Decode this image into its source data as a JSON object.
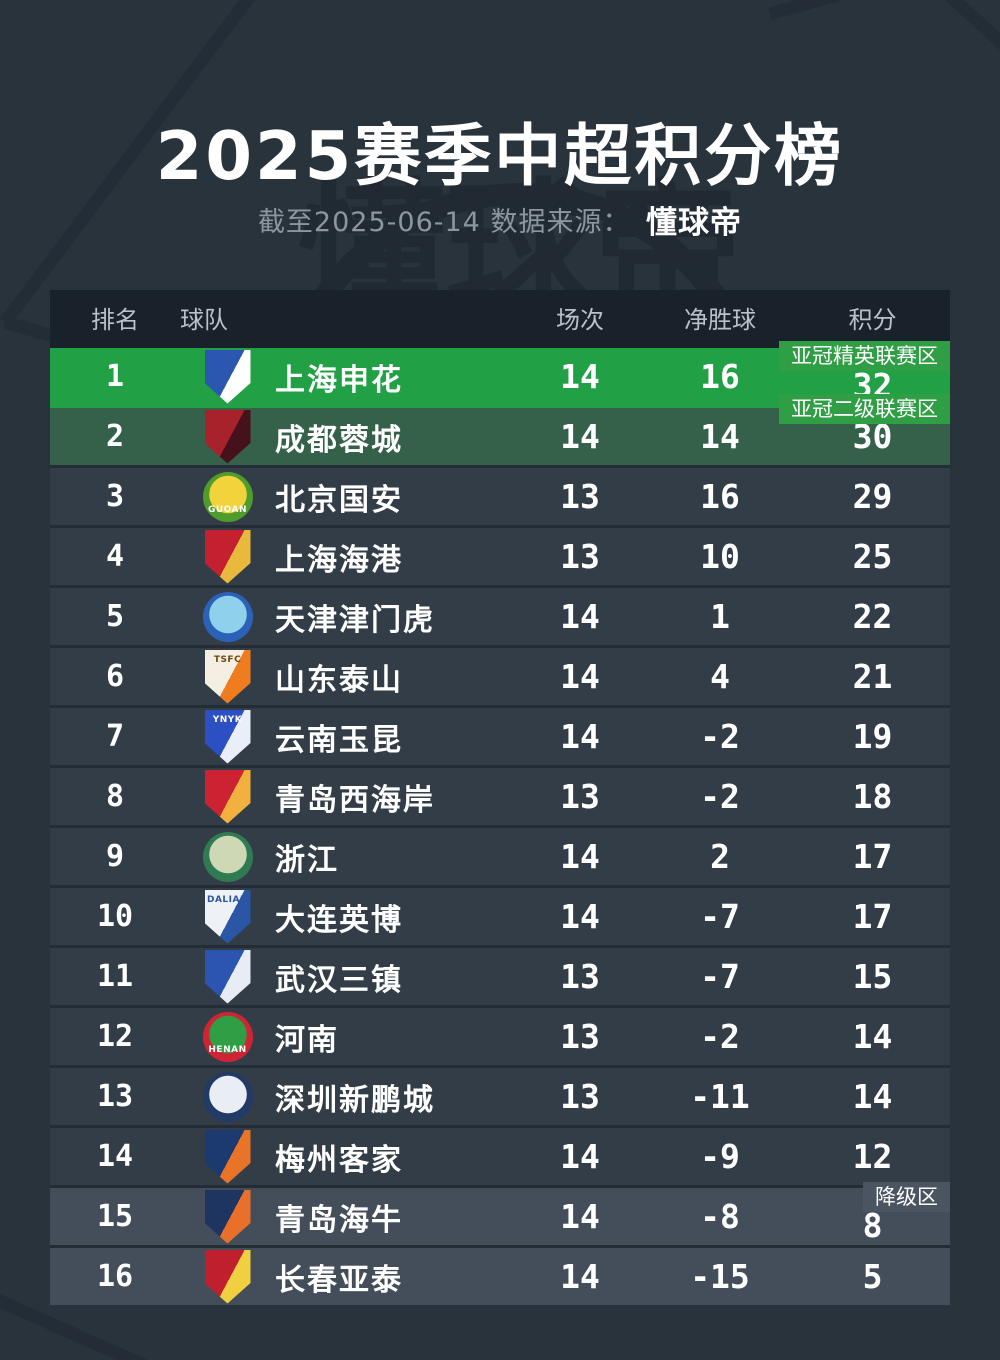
{
  "title": "2025赛季中超积分榜",
  "subtitle": {
    "date_note": "截至2025-06-14",
    "source_label": "数据来源：",
    "source_name": "懂球帝"
  },
  "watermark_text": "懂球帝",
  "colors": {
    "page_bg": "#29333c",
    "header_bg": "#19212a",
    "row_bg": "#333d47",
    "row_bg_relegation": "#444e5a",
    "row_bg_champion_green": "#22a045",
    "row_bg_acl2_green": "#35614b",
    "badge_green": "#2f9e44",
    "badge_gray": "#4b5561",
    "separator": "#242d36",
    "header_text": "#b9c1c9",
    "subtitle_text": "#8d969e",
    "body_text": "#ffffff"
  },
  "table": {
    "headers": {
      "rank": "排名",
      "team": "球队",
      "played": "场次",
      "gd": "净胜球",
      "points": "积分"
    },
    "zones": {
      "acl_elite": "亚冠精英联赛区",
      "acl_two": "亚冠二级联赛区",
      "relegation": "降级区"
    },
    "rows": [
      {
        "rank": "1",
        "team": "上海申花",
        "played": "14",
        "gd": "16",
        "points": "32",
        "zone": "acl_elite",
        "row_style": "elite",
        "logo": {
          "shape": "shield",
          "colors": [
            "#2b57b0",
            "#ffffff"
          ],
          "abbr": "",
          "abbr_color": "#ffffff",
          "abbr_pos": "top"
        }
      },
      {
        "rank": "2",
        "team": "成都蓉城",
        "played": "14",
        "gd": "14",
        "points": "30",
        "zone": "acl_two",
        "row_style": "acl2",
        "logo": {
          "shape": "shield",
          "colors": [
            "#a8222c",
            "#45111a"
          ],
          "abbr": "",
          "abbr_color": "#ffffff",
          "abbr_pos": "top"
        }
      },
      {
        "rank": "3",
        "team": "北京国安",
        "played": "13",
        "gd": "16",
        "points": "29",
        "zone": "",
        "row_style": "",
        "logo": {
          "shape": "circle",
          "colors": [
            "#4f9c2d",
            "#f2d33c"
          ],
          "abbr": "GUOAN",
          "abbr_color": "#ffffff",
          "abbr_pos": "bottom"
        }
      },
      {
        "rank": "4",
        "team": "上海海港",
        "played": "13",
        "gd": "10",
        "points": "25",
        "zone": "",
        "row_style": "",
        "logo": {
          "shape": "shield",
          "colors": [
            "#c4202f",
            "#e8b93c"
          ],
          "abbr": "",
          "abbr_color": "#ffffff",
          "abbr_pos": "top"
        }
      },
      {
        "rank": "5",
        "team": "天津津门虎",
        "played": "14",
        "gd": "1",
        "points": "22",
        "zone": "",
        "row_style": "",
        "logo": {
          "shape": "circle",
          "colors": [
            "#2b62b8",
            "#8fd0ec"
          ],
          "abbr": "",
          "abbr_color": "#ffffff",
          "abbr_pos": "bottom"
        }
      },
      {
        "rank": "6",
        "team": "山东泰山",
        "played": "14",
        "gd": "4",
        "points": "21",
        "zone": "",
        "row_style": "",
        "logo": {
          "shape": "shield",
          "colors": [
            "#f4efe2",
            "#ef7c1e"
          ],
          "abbr": "TSFC",
          "abbr_color": "#6b4a12",
          "abbr_pos": "top"
        }
      },
      {
        "rank": "7",
        "team": "云南玉昆",
        "played": "14",
        "gd": "-2",
        "points": "19",
        "zone": "",
        "row_style": "",
        "logo": {
          "shape": "shield",
          "colors": [
            "#2d4fc4",
            "#e9eef8"
          ],
          "abbr": "YNYK",
          "abbr_color": "#ffffff",
          "abbr_pos": "top"
        }
      },
      {
        "rank": "8",
        "team": "青岛西海岸",
        "played": "13",
        "gd": "-2",
        "points": "18",
        "zone": "",
        "row_style": "",
        "logo": {
          "shape": "shield",
          "colors": [
            "#cc2231",
            "#f2b13e"
          ],
          "abbr": "",
          "abbr_color": "#ffffff",
          "abbr_pos": "top"
        }
      },
      {
        "rank": "9",
        "team": "浙江",
        "played": "14",
        "gd": "2",
        "points": "17",
        "zone": "",
        "row_style": "",
        "logo": {
          "shape": "circle",
          "colors": [
            "#2f7a52",
            "#cfd8b4"
          ],
          "abbr": "",
          "abbr_color": "#ffffff",
          "abbr_pos": "bottom"
        }
      },
      {
        "rank": "10",
        "team": "大连英博",
        "played": "14",
        "gd": "-7",
        "points": "17",
        "zone": "",
        "row_style": "",
        "logo": {
          "shape": "shield",
          "colors": [
            "#eef2f7",
            "#2b55a5"
          ],
          "abbr": "DALIAN",
          "abbr_color": "#2b55a5",
          "abbr_pos": "top"
        }
      },
      {
        "rank": "11",
        "team": "武汉三镇",
        "played": "13",
        "gd": "-7",
        "points": "15",
        "zone": "",
        "row_style": "",
        "logo": {
          "shape": "shield",
          "colors": [
            "#2b55b0",
            "#e8ecf5"
          ],
          "abbr": "",
          "abbr_color": "#ffffff",
          "abbr_pos": "top"
        }
      },
      {
        "rank": "12",
        "team": "河南",
        "played": "13",
        "gd": "-2",
        "points": "14",
        "zone": "",
        "row_style": "",
        "logo": {
          "shape": "circle",
          "colors": [
            "#cf2433",
            "#2f9e44"
          ],
          "abbr": "HENAN",
          "abbr_color": "#ffffff",
          "abbr_pos": "bottom"
        }
      },
      {
        "rank": "13",
        "team": "深圳新鹏城",
        "played": "13",
        "gd": "-11",
        "points": "14",
        "zone": "",
        "row_style": "",
        "logo": {
          "shape": "circle",
          "colors": [
            "#223a66",
            "#e9eef5"
          ],
          "abbr": "",
          "abbr_color": "#ffffff",
          "abbr_pos": "bottom"
        }
      },
      {
        "rank": "14",
        "team": "梅州客家",
        "played": "14",
        "gd": "-9",
        "points": "12",
        "zone": "",
        "row_style": "",
        "logo": {
          "shape": "shield",
          "colors": [
            "#1d3a70",
            "#e87428"
          ],
          "abbr": "",
          "abbr_color": "#ffffff",
          "abbr_pos": "top"
        }
      },
      {
        "rank": "15",
        "team": "青岛海牛",
        "played": "14",
        "gd": "-8",
        "points": "8",
        "zone": "relegation",
        "row_style": "releg",
        "logo": {
          "shape": "shield",
          "colors": [
            "#1d3560",
            "#e8702a"
          ],
          "abbr": "",
          "abbr_color": "#ffffff",
          "abbr_pos": "top"
        }
      },
      {
        "rank": "16",
        "team": "长春亚泰",
        "played": "14",
        "gd": "-15",
        "points": "5",
        "zone": "",
        "row_style": "releg",
        "logo": {
          "shape": "shield",
          "colors": [
            "#c0202e",
            "#f0d040"
          ],
          "abbr": "",
          "abbr_color": "#ffffff",
          "abbr_pos": "top"
        }
      }
    ]
  },
  "chart_data": {
    "type": "table",
    "title": "2025赛季中超积分榜",
    "subtitle": "截至2025-06-14 数据来源：懂球帝",
    "columns": [
      "排名",
      "球队",
      "场次",
      "净胜球",
      "积分"
    ],
    "rows": [
      [
        1,
        "上海申花",
        14,
        16,
        32
      ],
      [
        2,
        "成都蓉城",
        14,
        14,
        30
      ],
      [
        3,
        "北京国安",
        13,
        16,
        29
      ],
      [
        4,
        "上海海港",
        13,
        10,
        25
      ],
      [
        5,
        "天津津门虎",
        14,
        1,
        22
      ],
      [
        6,
        "山东泰山",
        14,
        4,
        21
      ],
      [
        7,
        "云南玉昆",
        14,
        -2,
        19
      ],
      [
        8,
        "青岛西海岸",
        13,
        -2,
        18
      ],
      [
        9,
        "浙江",
        14,
        2,
        17
      ],
      [
        10,
        "大连英博",
        14,
        -7,
        17
      ],
      [
        11,
        "武汉三镇",
        13,
        -7,
        15
      ],
      [
        12,
        "河南",
        13,
        -2,
        14
      ],
      [
        13,
        "深圳新鹏城",
        13,
        -11,
        14
      ],
      [
        14,
        "梅州客家",
        14,
        -9,
        12
      ],
      [
        15,
        "青岛海牛",
        14,
        -8,
        8
      ],
      [
        16,
        "长春亚泰",
        14,
        -15,
        5
      ]
    ],
    "annotations": [
      {
        "row": 1,
        "label": "亚冠精英联赛区"
      },
      {
        "row": 2,
        "label": "亚冠二级联赛区"
      },
      {
        "row": 15,
        "label": "降级区"
      }
    ]
  }
}
